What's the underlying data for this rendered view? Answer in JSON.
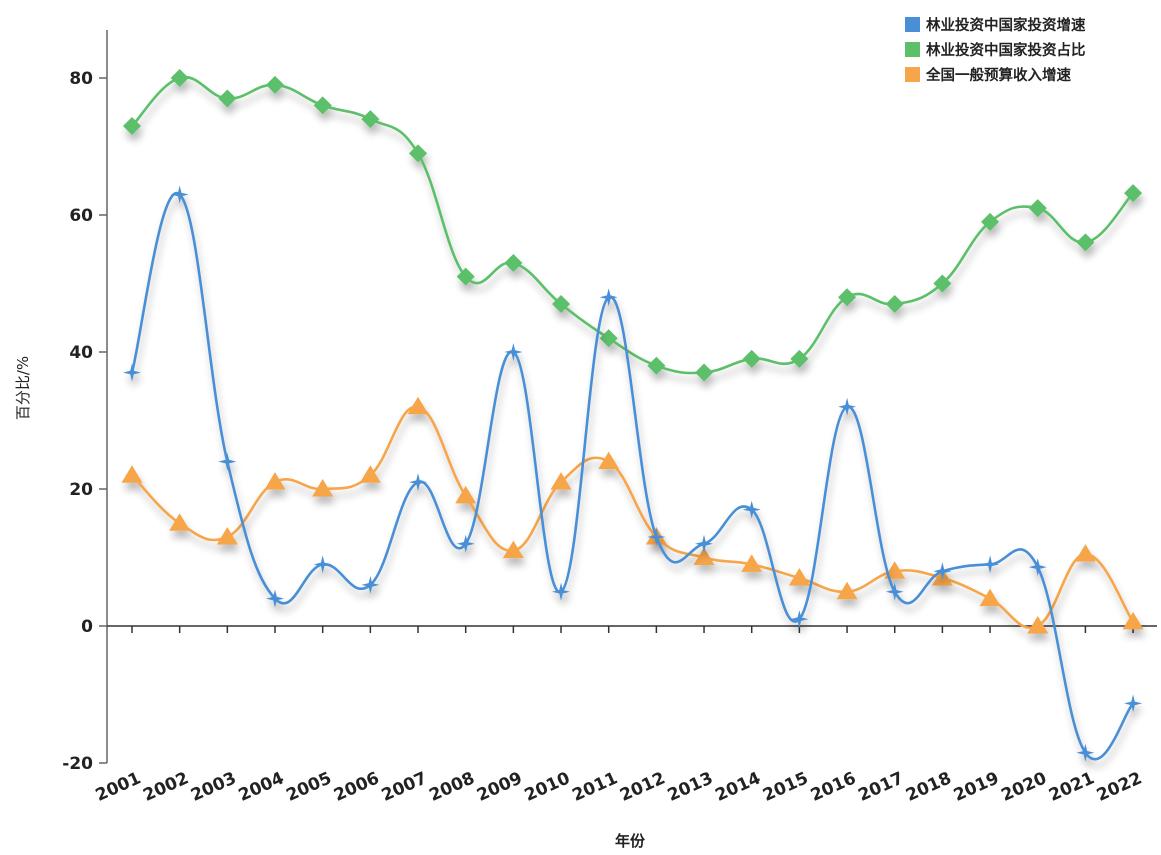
{
  "chart_data": {
    "type": "line",
    "title": "",
    "xlabel": "年份",
    "ylabel": "百分比/%",
    "ylim": [
      -20,
      87
    ],
    "yticks": [
      -20,
      0,
      20,
      40,
      60,
      80
    ],
    "ytick_labels": [
      "-20",
      "0",
      "20",
      "40",
      "60",
      "80"
    ],
    "grid": false,
    "legend_position": "top-right",
    "categories": [
      "2001",
      "2002",
      "2003",
      "2004",
      "2005",
      "2006",
      "2007",
      "2008",
      "2009",
      "2010",
      "2011",
      "2012",
      "2013",
      "2014",
      "2015",
      "2016",
      "2017",
      "2018",
      "2019",
      "2020",
      "2021",
      "2022"
    ],
    "series": [
      {
        "name": "林业投资中国家投资增速",
        "color": "#4a8fd6",
        "marker": "star",
        "values": [
          37,
          63,
          24,
          4,
          9,
          6,
          21,
          12,
          40,
          5,
          48,
          13,
          12,
          17,
          1,
          32,
          5,
          8,
          9,
          8.6,
          -18.5,
          -11.3
        ]
      },
      {
        "name": "林业投资中国家投资占比",
        "color": "#5cbf6a",
        "marker": "diamond",
        "values": [
          73,
          80,
          77,
          79,
          76,
          74,
          69,
          51,
          53,
          47,
          42,
          38,
          37,
          39,
          39,
          48,
          47,
          50,
          59,
          61,
          56,
          63.2
        ]
      },
      {
        "name": "全国一般预算收入增速",
        "color": "#f7a54a",
        "marker": "triangle",
        "values": [
          22,
          15,
          13,
          21,
          20,
          22,
          32,
          19,
          11,
          21,
          24,
          13,
          10,
          9,
          7,
          5,
          8,
          7,
          4,
          0,
          10.5,
          0.6
        ]
      }
    ]
  }
}
